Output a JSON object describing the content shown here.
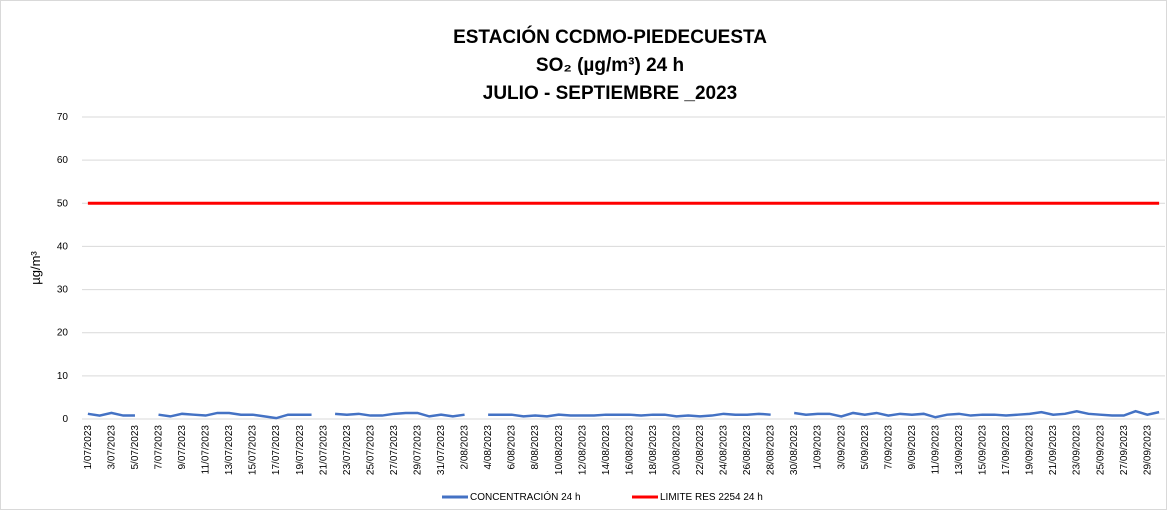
{
  "chart_data": {
    "type": "line",
    "title": [
      "ESTACIÓN CCDMO-PIEDECUESTA",
      "SO₂ (µg/m³) 24 h",
      "JULIO - SEPTIEMBRE _2023"
    ],
    "y_label": "µg/m³",
    "categories": [
      "1/07/2023",
      null,
      "3/07/2023",
      null,
      "5/07/2023",
      null,
      "7/07/2023",
      null,
      "9/07/2023",
      null,
      "11/07/2023",
      null,
      "13/07/2023",
      null,
      "15/07/2023",
      null,
      "17/07/2023",
      null,
      "19/07/2023",
      null,
      "21/07/2023",
      null,
      "23/07/2023",
      null,
      "25/07/2023",
      null,
      "27/07/2023",
      null,
      "29/07/2023",
      null,
      "31/07/2023",
      null,
      "2/08/2023",
      null,
      "4/08/2023",
      null,
      "6/08/2023",
      null,
      "8/08/2023",
      null,
      "10/08/2023",
      null,
      "12/08/2023",
      null,
      "14/08/2023",
      null,
      "16/08/2023",
      null,
      "18/08/2023",
      null,
      "20/08/2023",
      null,
      "22/08/2023",
      null,
      "24/08/2023",
      null,
      "26/08/2023",
      null,
      "28/08/2023",
      null,
      "30/08/2023",
      null,
      "1/09/2023",
      null,
      "3/09/2023",
      null,
      "5/09/2023",
      null,
      "7/09/2023",
      null,
      "9/09/2023",
      null,
      "11/09/2023",
      null,
      "13/09/2023",
      null,
      "15/09/2023",
      null,
      "17/09/2023",
      null,
      "19/09/2023",
      null,
      "21/09/2023",
      null,
      "23/09/2023",
      null,
      "25/09/2023",
      null,
      "27/09/2023",
      null,
      "29/09/2023",
      null
    ],
    "series": [
      {
        "name": "CONCENTRACIÓN 24 h",
        "color": "#4472c4",
        "values": [
          1.2,
          0.8,
          1.4,
          0.8,
          0.8,
          null,
          1.0,
          0.6,
          1.2,
          1.0,
          0.8,
          1.4,
          1.4,
          1.0,
          1.0,
          0.6,
          0.2,
          1.0,
          1.0,
          1.0,
          null,
          1.2,
          1.0,
          1.2,
          0.8,
          0.8,
          1.2,
          1.4,
          1.4,
          0.6,
          1.0,
          0.6,
          1.0,
          null,
          1.0,
          1.0,
          1.0,
          0.6,
          0.8,
          0.6,
          1.0,
          0.8,
          0.8,
          0.8,
          1.0,
          1.0,
          1.0,
          0.8,
          1.0,
          1.0,
          0.6,
          0.8,
          0.6,
          0.8,
          1.2,
          1.0,
          1.0,
          1.2,
          1.0,
          null,
          1.4,
          1.0,
          1.2,
          1.2,
          0.6,
          1.4,
          1.0,
          1.4,
          0.8,
          1.2,
          1.0,
          1.2,
          0.4,
          1.0,
          1.2,
          0.8,
          1.0,
          1.0,
          0.8,
          1.0,
          1.2,
          1.6,
          1.0,
          1.2,
          1.8,
          1.2,
          1.0,
          0.8,
          0.8,
          1.8,
          1.0,
          1.6
        ]
      },
      {
        "name": "LIMITE RES 2254 24 h",
        "color": "#ff0000",
        "values": [
          50,
          50,
          50,
          50,
          50,
          50,
          50,
          50,
          50,
          50,
          50,
          50,
          50,
          50,
          50,
          50,
          50,
          50,
          50,
          50,
          50,
          50,
          50,
          50,
          50,
          50,
          50,
          50,
          50,
          50,
          50,
          50,
          50,
          50,
          50,
          50,
          50,
          50,
          50,
          50,
          50,
          50,
          50,
          50,
          50,
          50,
          50,
          50,
          50,
          50,
          50,
          50,
          50,
          50,
          50,
          50,
          50,
          50,
          50,
          50,
          50,
          50,
          50,
          50,
          50,
          50,
          50,
          50,
          50,
          50,
          50,
          50,
          50,
          50,
          50,
          50,
          50,
          50,
          50,
          50,
          50,
          50,
          50,
          50,
          50,
          50,
          50,
          50,
          50,
          50,
          50,
          50
        ]
      }
    ],
    "ylim": [
      0,
      70
    ],
    "yticks": [
      0,
      10,
      20,
      30,
      40,
      50,
      60,
      70
    ],
    "grid": true,
    "legend": "bottom"
  }
}
